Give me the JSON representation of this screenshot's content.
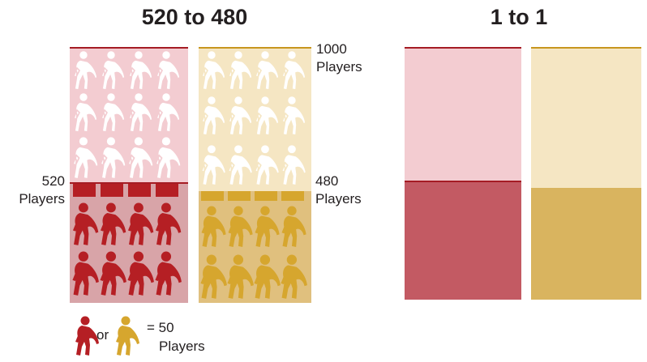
{
  "colors": {
    "red_dark": "#b51f24",
    "red_light": "#f3ccd1",
    "red_mid": "#d8a4a8",
    "red_fill": "#c35a63",
    "red_line": "#a51c24",
    "gold_dark": "#d6a62e",
    "gold_light": "#f5e6c3",
    "gold_mid": "#e0c07e",
    "gold_fill": "#d9b45f",
    "gold_line": "#c8961e"
  },
  "left": {
    "title": "520 to 480",
    "total_line": "1000",
    "total_unit": "Players",
    "red_count_line": "520",
    "red_unit": "Players",
    "gold_count_line": "480",
    "gold_unit": "Players",
    "red_players": 520,
    "gold_players": 480,
    "total_players": 1000
  },
  "right": {
    "title": "1 to 1"
  },
  "legend": {
    "or": "or",
    "equals": "= 50",
    "unit": "Players"
  },
  "icon": "player-figure-icon"
}
